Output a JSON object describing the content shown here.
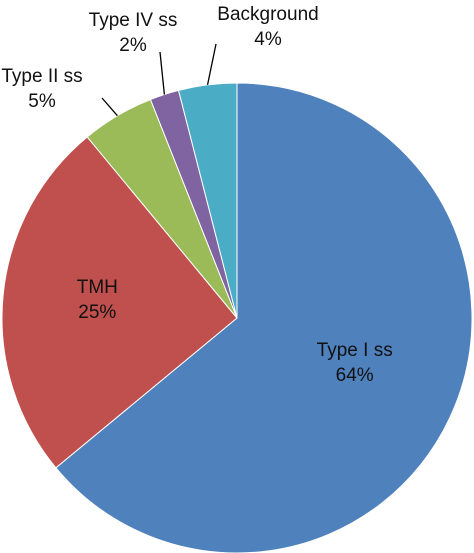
{
  "chart_data": {
    "type": "pie",
    "title": "",
    "start_angle_deg": 0,
    "direction": "clockwise",
    "slices": [
      {
        "label": "Type I ss",
        "value": 64,
        "percent_label": "64%",
        "color": "#4F81BD"
      },
      {
        "label": "TMH",
        "value": 25,
        "percent_label": "25%",
        "color": "#C0504D"
      },
      {
        "label": "Type II ss",
        "value": 5,
        "percent_label": "5%",
        "color": "#9BBB59"
      },
      {
        "label": "Type IV ss",
        "value": 2,
        "percent_label": "2%",
        "color": "#8064A2"
      },
      {
        "label": "Background",
        "value": 4,
        "percent_label": "4%",
        "color": "#4BACC6"
      }
    ],
    "legend": "none",
    "data_labels": "category-and-percent"
  }
}
